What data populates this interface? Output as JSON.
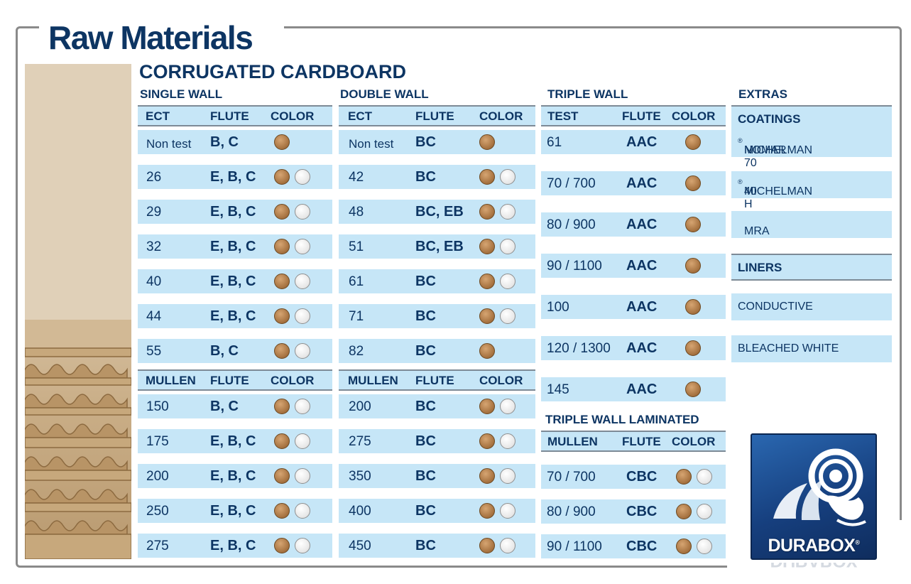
{
  "page_title": "Raw Materials",
  "section_title": "CORRUGATED CARDBOARD",
  "colors": {
    "navy": "#0d3563",
    "row_bg": "#c6e6f7",
    "kraft": "#a4703e",
    "white": "#ffffff"
  },
  "single_wall": {
    "title": "SINGLE WALL",
    "ect_headers": [
      "ECT",
      "FLUTE",
      "COLOR"
    ],
    "ect_rows": [
      {
        "value": "Non test",
        "flute": "B, C",
        "colors": [
          "brown"
        ]
      },
      {
        "value": "26",
        "flute": "E, B, C",
        "colors": [
          "brown",
          "white"
        ]
      },
      {
        "value": "29",
        "flute": "E, B, C",
        "colors": [
          "brown",
          "white"
        ]
      },
      {
        "value": "32",
        "flute": "E, B, C",
        "colors": [
          "brown",
          "white"
        ]
      },
      {
        "value": "40",
        "flute": "E, B, C",
        "colors": [
          "brown",
          "white"
        ]
      },
      {
        "value": "44",
        "flute": "E, B, C",
        "colors": [
          "brown",
          "white"
        ]
      },
      {
        "value": "55",
        "flute": "B, C",
        "colors": [
          "brown",
          "white"
        ]
      }
    ],
    "mullen_headers": [
      "MULLEN",
      "FLUTE",
      "COLOR"
    ],
    "mullen_rows": [
      {
        "value": "150",
        "flute": "B, C",
        "colors": [
          "brown",
          "white"
        ]
      },
      {
        "value": "175",
        "flute": "E, B, C",
        "colors": [
          "brown",
          "white"
        ]
      },
      {
        "value": "200",
        "flute": "E, B, C",
        "colors": [
          "brown",
          "white"
        ]
      },
      {
        "value": "250",
        "flute": "E, B, C",
        "colors": [
          "brown",
          "white"
        ]
      },
      {
        "value": "275",
        "flute": "E, B, C",
        "colors": [
          "brown",
          "white"
        ]
      }
    ]
  },
  "double_wall": {
    "title": "DOUBLE WALL",
    "ect_headers": [
      "ECT",
      "FLUTE",
      "COLOR"
    ],
    "ect_rows": [
      {
        "value": "Non test",
        "flute": "BC",
        "colors": [
          "brown"
        ]
      },
      {
        "value": "42",
        "flute": "BC",
        "colors": [
          "brown",
          "white"
        ]
      },
      {
        "value": "48",
        "flute": "BC, EB",
        "colors": [
          "brown",
          "white"
        ]
      },
      {
        "value": "51",
        "flute": "BC, EB",
        "colors": [
          "brown",
          "white"
        ]
      },
      {
        "value": "61",
        "flute": "BC",
        "colors": [
          "brown",
          "white"
        ]
      },
      {
        "value": "71",
        "flute": "BC",
        "colors": [
          "brown",
          "white"
        ]
      },
      {
        "value": "82",
        "flute": "BC",
        "colors": [
          "brown"
        ]
      }
    ],
    "mullen_headers": [
      "MULLEN",
      "FLUTE",
      "COLOR"
    ],
    "mullen_rows": [
      {
        "value": "200",
        "flute": "BC",
        "colors": [
          "brown",
          "white"
        ]
      },
      {
        "value": "275",
        "flute": "BC",
        "colors": [
          "brown",
          "white"
        ]
      },
      {
        "value": "350",
        "flute": "BC",
        "colors": [
          "brown",
          "white"
        ]
      },
      {
        "value": "400",
        "flute": "BC",
        "colors": [
          "brown",
          "white"
        ]
      },
      {
        "value": "450",
        "flute": "BC",
        "colors": [
          "brown",
          "white"
        ]
      }
    ]
  },
  "triple_wall": {
    "title": "TRIPLE WALL",
    "headers": [
      "TEST",
      "FLUTE",
      "COLOR"
    ],
    "rows": [
      {
        "value": "61",
        "flute": "AAC",
        "colors": [
          "brown"
        ]
      },
      {
        "value": "70 / 700",
        "flute": "AAC",
        "colors": [
          "brown"
        ]
      },
      {
        "value": "80 / 900",
        "flute": "AAC",
        "colors": [
          "brown"
        ]
      },
      {
        "value": "90 / 1100",
        "flute": "AAC",
        "colors": [
          "brown"
        ]
      },
      {
        "value": "100",
        "flute": "AAC",
        "colors": [
          "brown"
        ]
      },
      {
        "value": "120 / 1300",
        "flute": "AAC",
        "colors": [
          "brown"
        ]
      },
      {
        "value": "145",
        "flute": "AAC",
        "colors": [
          "brown"
        ]
      }
    ]
  },
  "triple_wall_laminated": {
    "title": "TRIPLE WALL LAMINATED",
    "headers": [
      "MULLEN",
      "FLUTE",
      "COLOR"
    ],
    "rows": [
      {
        "value": "70 / 700",
        "flute": "CBC",
        "colors": [
          "brown",
          "white"
        ]
      },
      {
        "value": "80 / 900",
        "flute": "CBC",
        "colors": [
          "brown",
          "white"
        ]
      },
      {
        "value": "90 / 1100",
        "flute": "CBC",
        "colors": [
          "brown",
          "white"
        ]
      }
    ]
  },
  "extras": {
    "title": "EXTRAS",
    "coatings_header": "COATINGS",
    "coatings": [
      {
        "name": "MICHELMAN",
        "mark": "®",
        "suffix": " NOMAR 70"
      },
      {
        "name": "MICHELMAN",
        "mark": "®",
        "suffix": " 40 H"
      },
      {
        "name": "MRA",
        "mark": "",
        "suffix": ""
      }
    ],
    "liners_header": "LINERS",
    "liners": [
      "CONDUCTIVE",
      "BLEACHED WHITE"
    ]
  },
  "logo": {
    "text": "DURABOX",
    "mark": "®",
    "icon": "ram-head-icon"
  }
}
